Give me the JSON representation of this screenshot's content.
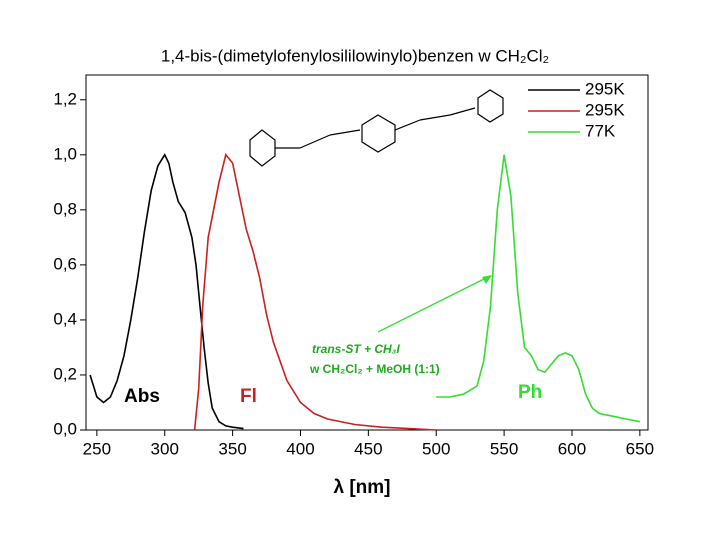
{
  "chart_data": {
    "type": "line",
    "title": "1,4-bis-(dimetylofenylosililowinylo)benzen w CH₂Cl₂",
    "xlabel": "λ [nm]",
    "xlim": [
      242,
      656
    ],
    "ylim": [
      0,
      1.29
    ],
    "xticks": [
      250,
      300,
      350,
      400,
      450,
      500,
      550,
      600,
      650
    ],
    "yticks": [
      {
        "value": 0,
        "label": "0,0"
      },
      {
        "value": 0.2,
        "label": "0,2"
      },
      {
        "value": 0.4,
        "label": "0,4"
      },
      {
        "value": 0.6,
        "label": "0,6"
      },
      {
        "value": 0.8,
        "label": "0,8"
      },
      {
        "value": 1.0,
        "label": "1,0"
      },
      {
        "value": 1.2,
        "label": "1,2"
      }
    ],
    "legend": "upper right",
    "annotations": [
      "Abs",
      "Fl",
      "Ph",
      "trans-ST + CH₃I",
      "w CH₂Cl₂ + MeOH (1:1)"
    ],
    "series": [
      {
        "name": "295K",
        "color": "#000000",
        "x": [
          245,
          250,
          255,
          260,
          265,
          270,
          275,
          280,
          285,
          290,
          295,
          300,
          303,
          306,
          310,
          315,
          320,
          323,
          326,
          329,
          332,
          335,
          340,
          345,
          350,
          358
        ],
        "values": [
          0.2,
          0.12,
          0.1,
          0.12,
          0.18,
          0.27,
          0.4,
          0.55,
          0.72,
          0.87,
          0.96,
          1.0,
          0.97,
          0.9,
          0.83,
          0.79,
          0.7,
          0.6,
          0.45,
          0.3,
          0.17,
          0.08,
          0.03,
          0.015,
          0.01,
          0.005
        ]
      },
      {
        "name": "295K",
        "color": "#cc2020",
        "x": [
          322,
          325,
          328,
          332,
          336,
          340,
          345,
          350,
          355,
          360,
          365,
          370,
          375,
          380,
          385,
          390,
          400,
          410,
          420,
          440,
          460,
          480,
          500
        ],
        "values": [
          0,
          0.15,
          0.45,
          0.7,
          0.8,
          0.9,
          1.0,
          0.97,
          0.85,
          0.73,
          0.65,
          0.55,
          0.42,
          0.32,
          0.25,
          0.18,
          0.1,
          0.06,
          0.04,
          0.02,
          0.01,
          0.005,
          0
        ]
      },
      {
        "name": "77K",
        "color": "#33dd33",
        "x": [
          500,
          510,
          520,
          530,
          535,
          540,
          545,
          550,
          555,
          560,
          565,
          570,
          575,
          580,
          585,
          590,
          595,
          600,
          605,
          610,
          615,
          620,
          630,
          640,
          650
        ],
        "values": [
          0.12,
          0.12,
          0.13,
          0.16,
          0.25,
          0.45,
          0.8,
          1.0,
          0.85,
          0.5,
          0.3,
          0.27,
          0.22,
          0.21,
          0.24,
          0.27,
          0.28,
          0.27,
          0.22,
          0.13,
          0.08,
          0.06,
          0.05,
          0.04,
          0.03
        ]
      }
    ]
  }
}
